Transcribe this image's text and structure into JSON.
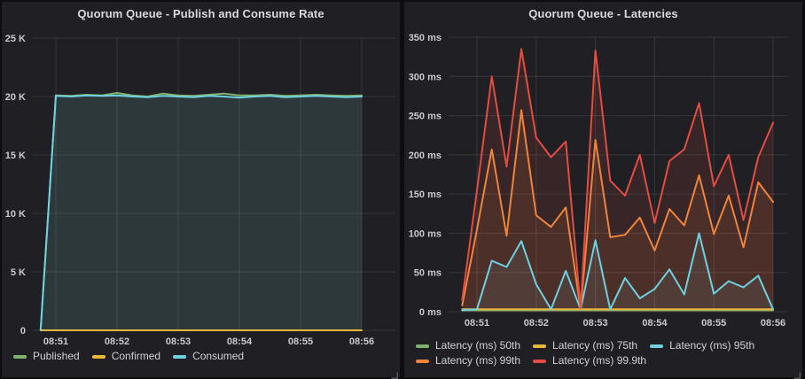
{
  "accent_colors": {
    "green": "#7EB26D",
    "yellow": "#EAB839",
    "cyan": "#6ED0E0",
    "orange": "#EF843C",
    "red": "#E24D42",
    "panel_bg": "#202024",
    "page_bg": "#0d0d0f",
    "grid": "rgba(255,255,255,0.10)",
    "tick_text": "#c9cacc",
    "title_text": "#d8d9da"
  },
  "chart_data": [
    {
      "type": "area",
      "title": "Quorum Queue - Publish and Consume Rate",
      "xlabel": "",
      "ylabel": "",
      "ylim": [
        0,
        25000
      ],
      "grid": true,
      "legend_position": "bottom-left",
      "x_minutes_from_0851": [
        -0.25,
        0,
        0.25,
        0.5,
        0.75,
        1,
        1.25,
        1.5,
        1.75,
        2,
        2.25,
        2.5,
        2.75,
        3,
        3.25,
        3.5,
        3.75,
        4,
        4.25,
        4.5,
        4.75,
        5
      ],
      "x_tick_positions": [
        0,
        1,
        2,
        3,
        4,
        5
      ],
      "x_tick_labels": [
        "08:51",
        "08:52",
        "08:53",
        "08:54",
        "08:55",
        "08:56"
      ],
      "y_tick_values": [
        0,
        5000,
        10000,
        15000,
        20000,
        25000
      ],
      "y_tick_labels": [
        "0",
        "5 K",
        "10 K",
        "15 K",
        "20 K",
        "25 K"
      ],
      "series": [
        {
          "name": "Published",
          "color": "#7EB26D",
          "fill_opacity": 0.06,
          "values": [
            0,
            20100,
            20050,
            20150,
            20100,
            20300,
            20100,
            20000,
            20250,
            20100,
            20050,
            20150,
            20250,
            20100,
            20100,
            20150,
            20050,
            20100,
            20150,
            20100,
            20050,
            20100
          ]
        },
        {
          "name": "Confirmed",
          "color": "#EAB839",
          "fill_opacity": 0,
          "values": [
            0,
            0,
            0,
            0,
            0,
            0,
            0,
            0,
            0,
            0,
            0,
            0,
            0,
            0,
            0,
            0,
            0,
            0,
            0,
            0,
            0,
            0
          ]
        },
        {
          "name": "Consumed",
          "color": "#6ED0E0",
          "fill_opacity": 0.1,
          "values": [
            0,
            20050,
            20000,
            20100,
            20050,
            20100,
            20000,
            19950,
            20050,
            20000,
            19950,
            20050,
            20000,
            19900,
            20000,
            20050,
            19950,
            20000,
            20050,
            20000,
            19950,
            20000
          ]
        }
      ]
    },
    {
      "type": "area",
      "title": "Quorum Queue - Latencies",
      "xlabel": "",
      "ylabel": "",
      "ylim": [
        0,
        350
      ],
      "grid": true,
      "legend_position": "bottom-left",
      "x_minutes_from_0851": [
        -0.25,
        0,
        0.25,
        0.5,
        0.75,
        1,
        1.25,
        1.5,
        1.75,
        2,
        2.25,
        2.5,
        2.75,
        3,
        3.25,
        3.5,
        3.75,
        4,
        4.25,
        4.5,
        4.75,
        5
      ],
      "x_tick_positions": [
        0,
        1,
        2,
        3,
        4,
        5
      ],
      "x_tick_labels": [
        "08:51",
        "08:52",
        "08:53",
        "08:54",
        "08:55",
        "08:56"
      ],
      "y_tick_values": [
        0,
        50,
        100,
        150,
        200,
        250,
        300,
        350
      ],
      "y_tick_labels": [
        "0 ms",
        "50 ms",
        "100 ms",
        "150 ms",
        "200 ms",
        "250 ms",
        "300 ms",
        "350 ms"
      ],
      "series": [
        {
          "name": "Latency (ms) 50th",
          "color": "#7EB26D",
          "fill_opacity": 0,
          "values": [
            2,
            2,
            2,
            2,
            2,
            2,
            2,
            2,
            2,
            2,
            2,
            2,
            2,
            2,
            2,
            2,
            2,
            2,
            2,
            2,
            2,
            2
          ]
        },
        {
          "name": "Latency (ms) 75th",
          "color": "#EAB839",
          "fill_opacity": 0,
          "values": [
            3,
            3,
            3,
            3,
            3,
            3,
            3,
            3,
            3,
            3,
            3,
            3,
            3,
            3,
            3,
            3,
            3,
            3,
            3,
            3,
            3,
            3
          ]
        },
        {
          "name": "Latency (ms) 95th",
          "color": "#6ED0E0",
          "fill_opacity": 0.1,
          "values": [
            2,
            3,
            65,
            57,
            90,
            35,
            3,
            52,
            3,
            91,
            3,
            43,
            17,
            29,
            54,
            22,
            100,
            23,
            39,
            31,
            46,
            3
          ]
        },
        {
          "name": "Latency (ms) 99th",
          "color": "#EF843C",
          "fill_opacity": 0.12,
          "values": [
            8,
            105,
            207,
            97,
            257,
            123,
            108,
            133,
            3,
            219,
            95,
            98,
            120,
            78,
            131,
            110,
            174,
            99,
            148,
            82,
            165,
            140
          ]
        },
        {
          "name": "Latency (ms) 99.9th",
          "color": "#E24D42",
          "fill_opacity": 0.12,
          "values": [
            15,
            155,
            300,
            185,
            335,
            222,
            197,
            217,
            5,
            333,
            167,
            148,
            200,
            113,
            192,
            207,
            266,
            160,
            200,
            117,
            197,
            241
          ]
        }
      ]
    }
  ]
}
